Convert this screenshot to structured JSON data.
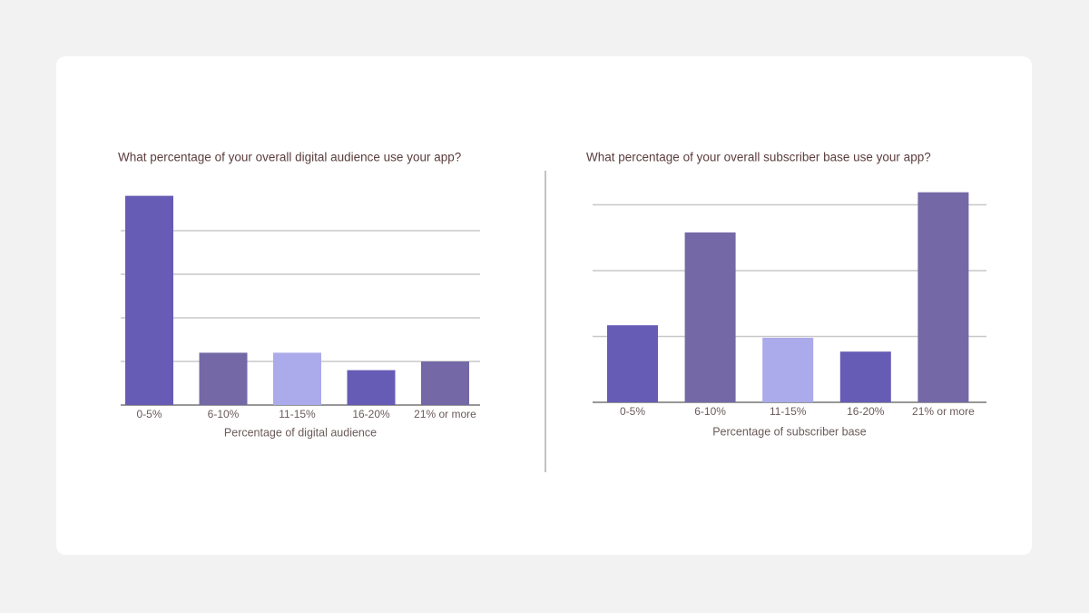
{
  "chart_data": [
    {
      "type": "bar",
      "title": "What percentage of your overall digital audience use your app?",
      "x_label": "Percentage of digital audience",
      "categories": [
        "0-5%",
        "6-10%",
        "11-15%",
        "16-20%",
        "21% or more"
      ],
      "values": [
        48,
        12,
        12,
        8,
        10
      ],
      "colors": [
        "#665cb5",
        "#7469a6",
        "#abaaea",
        "#665cb5",
        "#7469a6"
      ],
      "ylim": [
        0,
        50
      ],
      "yticks": [
        0,
        10,
        20,
        30,
        40
      ],
      "grid": true
    },
    {
      "type": "bar",
      "title": "What percentage of your overall subscriber base use your app?",
      "x_label": "Percentage of subscriber base",
      "categories": [
        "0-5%",
        "6-10%",
        "11-15%",
        "16-20%",
        "21% or more"
      ],
      "values": [
        11.7,
        25.8,
        9.8,
        7.7,
        31.9
      ],
      "colors": [
        "#665cb5",
        "#7469a6",
        "#abaaea",
        "#665cb5",
        "#7469a6"
      ],
      "ylim": [
        0,
        32
      ],
      "yticks": [
        0,
        10,
        20,
        30
      ],
      "grid": true
    }
  ]
}
